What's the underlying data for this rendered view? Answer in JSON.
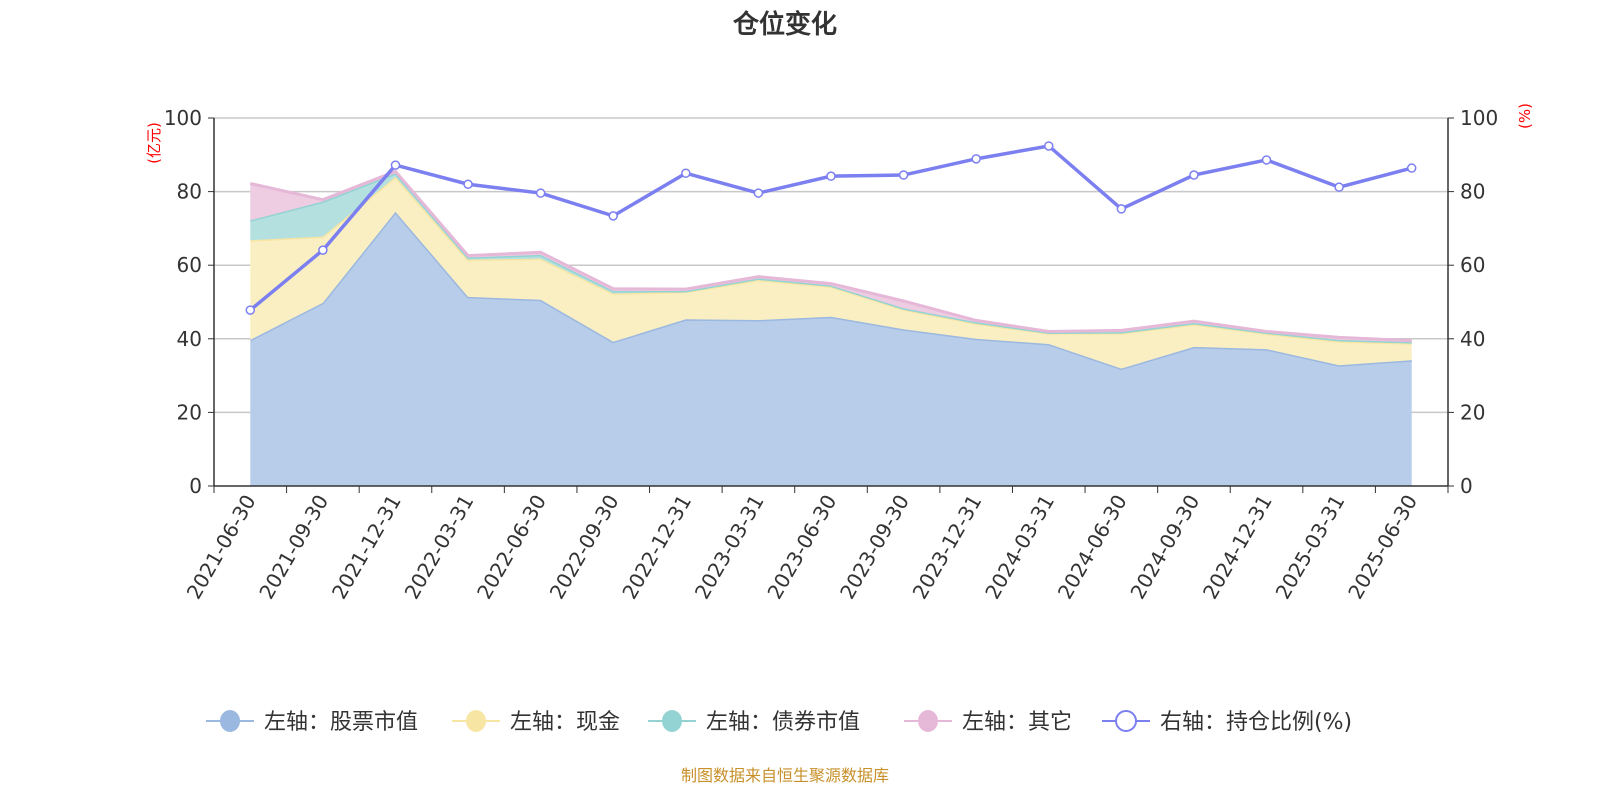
{
  "chart_data": {
    "type": "area",
    "title": "仓位变化",
    "left_axis": {
      "unit_label": "(亿元)",
      "range": [
        0,
        100
      ],
      "ticks": [
        0,
        20,
        40,
        60,
        80,
        100
      ]
    },
    "right_axis": {
      "unit_label": "(%)",
      "range": [
        0,
        100
      ],
      "ticks": [
        0,
        20,
        40,
        60,
        80,
        100
      ]
    },
    "unit_label_color": "#ff0000",
    "grid": true,
    "legend_placement": "bottom",
    "categories": [
      "2021-06-30",
      "2021-09-30",
      "2021-12-31",
      "2022-03-31",
      "2022-06-30",
      "2022-09-30",
      "2022-12-31",
      "2023-03-31",
      "2023-06-30",
      "2023-09-30",
      "2023-12-31",
      "2024-03-31",
      "2024-06-30",
      "2024-09-30",
      "2024-12-31",
      "2025-03-31",
      "2025-06-30"
    ],
    "series": [
      {
        "name": "左轴：股票市值",
        "axis": "left",
        "stacked": true,
        "color": "#9bb8e0",
        "fill": "#b8cdea",
        "values": [
          39.7,
          49.8,
          74.5,
          51.4,
          50.6,
          39.2,
          45.3,
          45.1,
          46.0,
          42.6,
          40.0,
          38.6,
          31.9,
          37.8,
          37.2,
          32.8,
          34.2
        ]
      },
      {
        "name": "左轴：现金",
        "axis": "left",
        "stacked": true,
        "color": "#f7e5a3",
        "fill": "#faefc3",
        "values": [
          27.1,
          18.0,
          9.5,
          10.1,
          11.2,
          13.1,
          7.5,
          10.9,
          8.2,
          5.4,
          4.2,
          2.9,
          9.6,
          6.2,
          4.2,
          6.5,
          4.6
        ]
      },
      {
        "name": "左轴：债券市值",
        "axis": "left",
        "stacked": true,
        "color": "#93d3d3",
        "fill": "#b5e0e0",
        "values": [
          5.4,
          9.5,
          1.0,
          0.6,
          1.0,
          0.7,
          0.2,
          0.4,
          0.3,
          0.3,
          0.3,
          0.2,
          0.3,
          0.3,
          0.3,
          0.4,
          0.3
        ]
      },
      {
        "name": "左轴：其它",
        "axis": "left",
        "stacked": true,
        "color": "#e6b8d8",
        "fill": "#eecce2",
        "values": [
          10.0,
          0.5,
          0.5,
          0.5,
          0.7,
          0.6,
          0.5,
          0.5,
          0.5,
          2.0,
          0.5,
          0.3,
          0.5,
          0.5,
          0.3,
          0.7,
          0.4
        ]
      },
      {
        "name": "右轴：持仓比例(%)",
        "axis": "right",
        "type": "line",
        "color": "#7b7ff0",
        "values": [
          47.8,
          64.1,
          87.2,
          82.0,
          79.6,
          73.4,
          85.0,
          79.6,
          84.2,
          84.5,
          88.9,
          92.4,
          75.3,
          84.5,
          88.6,
          81.2,
          86.4
        ]
      }
    ]
  },
  "footer": {
    "source": "制图数据来自恒生聚源数据库",
    "color": "#c8902a"
  }
}
